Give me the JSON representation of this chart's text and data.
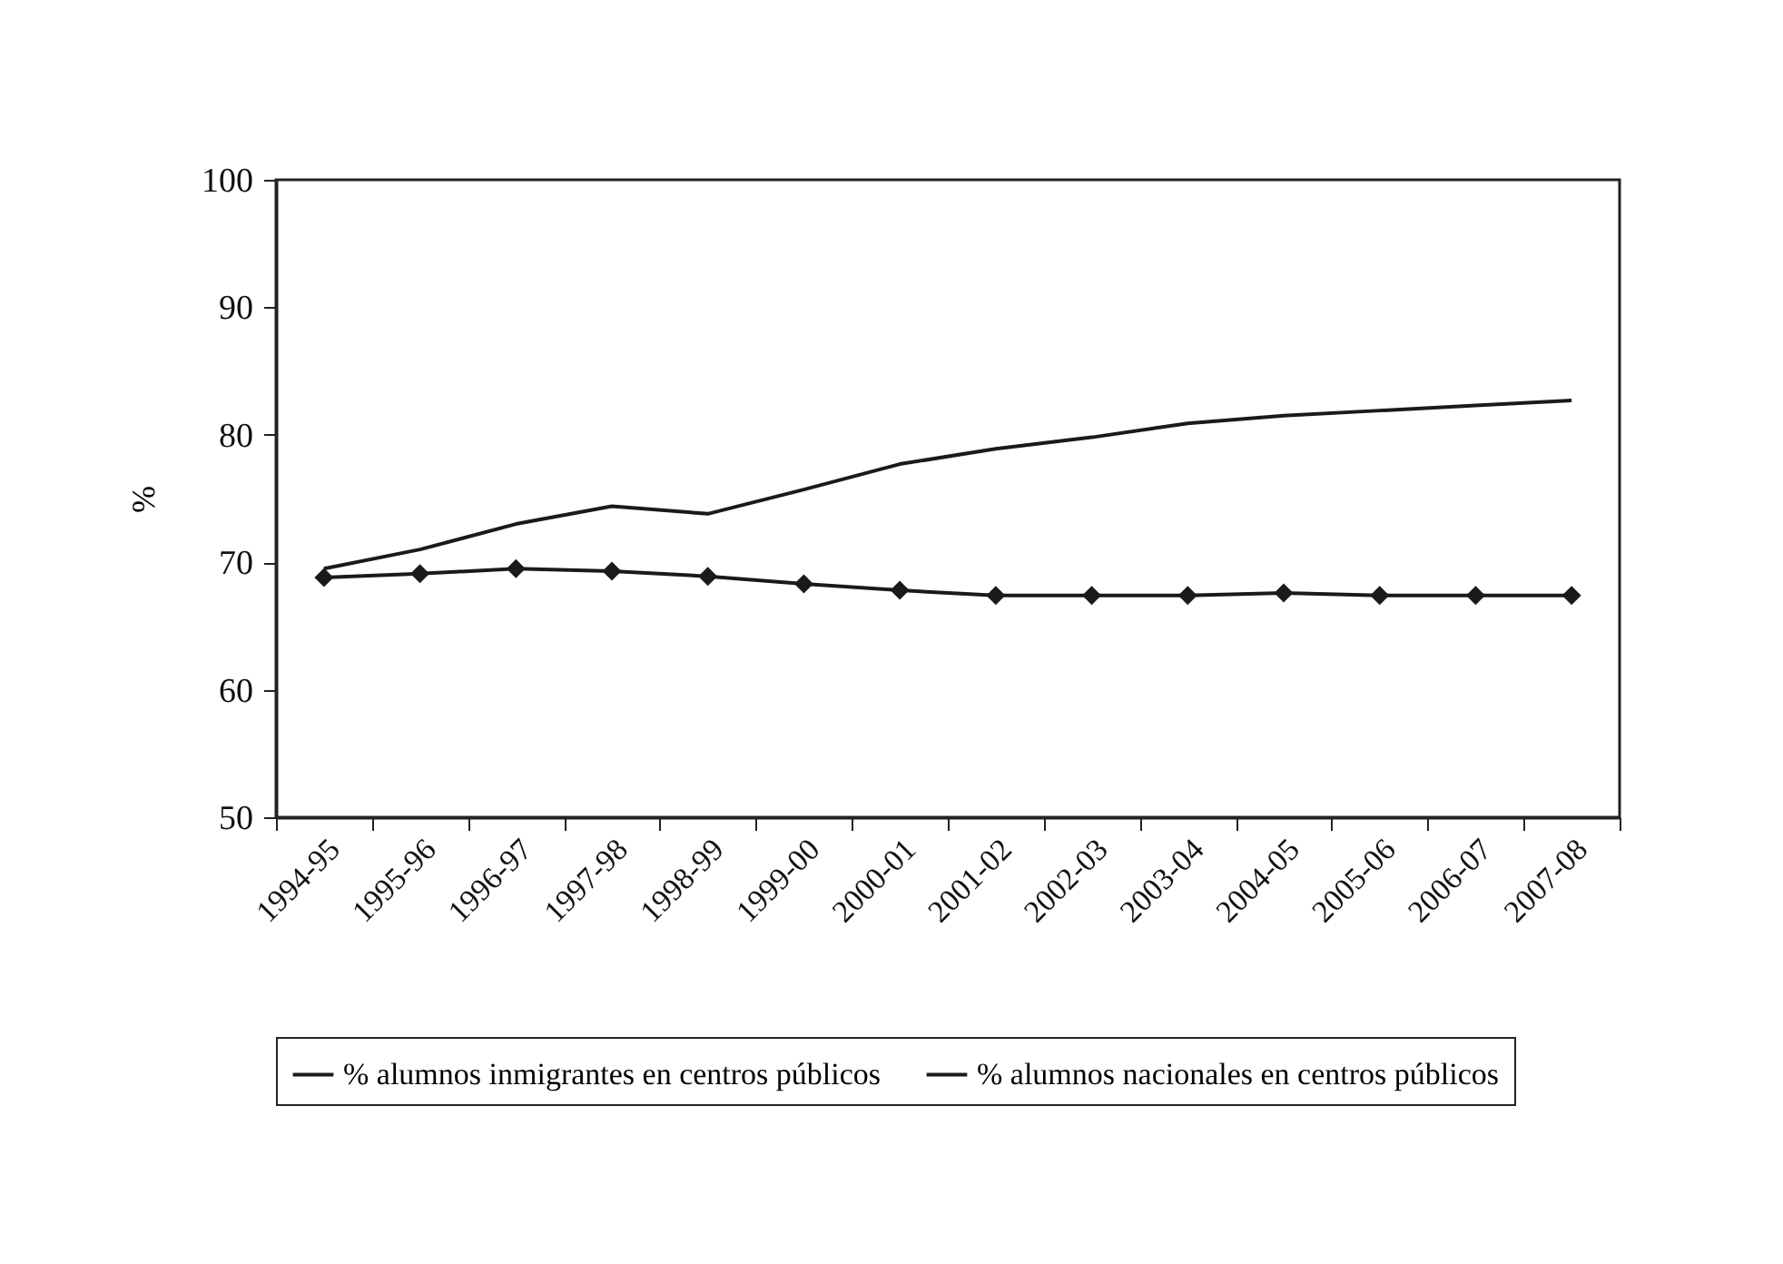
{
  "chart_data": {
    "type": "line",
    "ylabel": "%",
    "categories": [
      "1994-95",
      "1995-96",
      "1996-97",
      "1997-98",
      "1998-99",
      "1999-00",
      "2000-01",
      "2001-02",
      "2002-03",
      "2003-04",
      "2004-05",
      "2005-06",
      "2006-07",
      "2007-08"
    ],
    "series": [
      {
        "name": "% alumnos inmigrantes en centros públicos",
        "color": "#1a1a1a",
        "marker": "none",
        "values": [
          69.5,
          71,
          73,
          74.4,
          73.8,
          75.7,
          77.7,
          78.9,
          79.8,
          80.9,
          81.5,
          81.9,
          82.3,
          82.7
        ]
      },
      {
        "name": "% alumnos nacionales en centros públicos",
        "color": "#1a1a1a",
        "marker": "diamond",
        "values": [
          68.8,
          69.1,
          69.5,
          69.3,
          68.9,
          68.3,
          67.8,
          67.4,
          67.4,
          67.4,
          67.6,
          67.4,
          67.4,
          67.4
        ]
      }
    ],
    "ylim": [
      50,
      100
    ],
    "yticks": [
      50,
      60,
      70,
      80,
      90,
      100
    ],
    "grid": false,
    "legend": "bottom"
  }
}
